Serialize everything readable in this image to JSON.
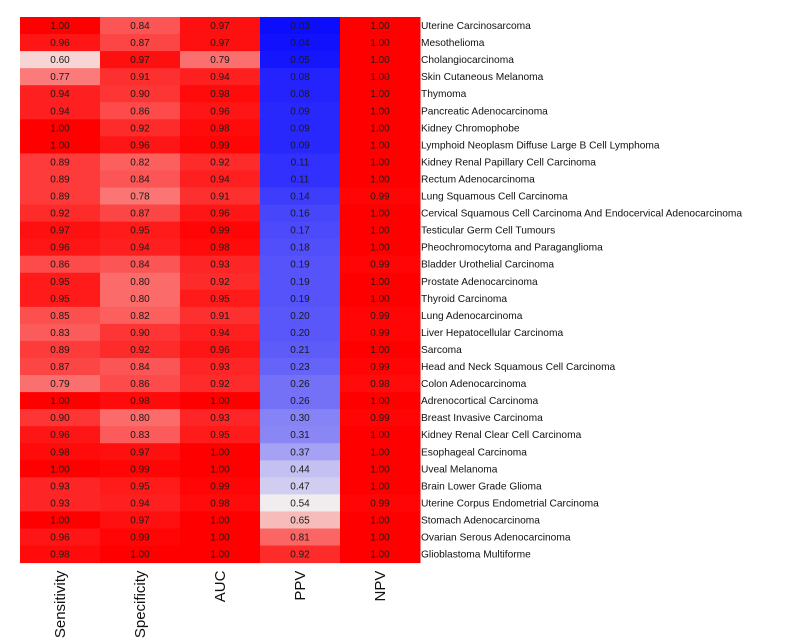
{
  "chart_data": {
    "type": "heatmap",
    "title": "",
    "columns": [
      "Sensitivity",
      "Specificity",
      "AUC",
      "PPV",
      "NPV"
    ],
    "rows": [
      {
        "name": "Uterine Carcinosarcoma",
        "values": [
          "1.00",
          "0.84",
          "0.97",
          "0.03",
          "1.00"
        ]
      },
      {
        "name": "Mesothelioma",
        "values": [
          "0.96",
          "0.87",
          "0.97",
          "0.04",
          "1.00"
        ]
      },
      {
        "name": "Cholangiocarcinoma",
        "values": [
          "0.60",
          "0.97",
          "0.79",
          "0.05",
          "1.00"
        ]
      },
      {
        "name": "Skin Cutaneous Melanoma",
        "values": [
          "0.77",
          "0.91",
          "0.94",
          "0.08",
          "1.00"
        ]
      },
      {
        "name": "Thymoma",
        "values": [
          "0.94",
          "0.90",
          "0.98",
          "0.08",
          "1.00"
        ]
      },
      {
        "name": "Pancreatic Adenocarcinoma",
        "values": [
          "0.94",
          "0.86",
          "0.96",
          "0.09",
          "1.00"
        ]
      },
      {
        "name": "Kidney Chromophobe",
        "values": [
          "1.00",
          "0.92",
          "0.98",
          "0.09",
          "1.00"
        ]
      },
      {
        "name": "Lymphoid Neoplasm Diffuse Large B Cell Lymphoma",
        "values": [
          "1.00",
          "0.96",
          "0.99",
          "0.09",
          "1.00"
        ]
      },
      {
        "name": "Kidney Renal Papillary Cell Carcinoma",
        "values": [
          "0.89",
          "0.82",
          "0.92",
          "0.11",
          "1.00"
        ]
      },
      {
        "name": "Rectum Adenocarcinoma",
        "values": [
          "0.89",
          "0.84",
          "0.94",
          "0.11",
          "1.00"
        ]
      },
      {
        "name": "Lung Squamous Cell Carcinoma",
        "values": [
          "0.89",
          "0.78",
          "0.91",
          "0.14",
          "0.99"
        ]
      },
      {
        "name": "Cervical Squamous Cell Carcinoma And Endocervical Adenocarcinoma",
        "values": [
          "0.92",
          "0.87",
          "0.96",
          "0.16",
          "1.00"
        ]
      },
      {
        "name": "Testicular Germ Cell Tumours",
        "values": [
          "0.97",
          "0.95",
          "0.99",
          "0.17",
          "1.00"
        ]
      },
      {
        "name": "Pheochromocytoma and Paraganglioma",
        "values": [
          "0.96",
          "0.94",
          "0.98",
          "0.18",
          "1.00"
        ]
      },
      {
        "name": "Bladder Urothelial Carcinoma",
        "values": [
          "0.86",
          "0.84",
          "0.93",
          "0.19",
          "0.99"
        ]
      },
      {
        "name": "Prostate Adenocarcinoma",
        "values": [
          "0.95",
          "0.80",
          "0.92",
          "0.19",
          "1.00"
        ]
      },
      {
        "name": "Thyroid Carcinoma",
        "values": [
          "0.95",
          "0.80",
          "0.95",
          "0.19",
          "1.00"
        ]
      },
      {
        "name": "Lung Adenocarcinoma",
        "values": [
          "0.85",
          "0.82",
          "0.91",
          "0.20",
          "0.99"
        ]
      },
      {
        "name": "Liver Hepatocellular Carcinoma",
        "values": [
          "0.83",
          "0.90",
          "0.94",
          "0.20",
          "0.99"
        ]
      },
      {
        "name": "Sarcoma",
        "values": [
          "0.89",
          "0.92",
          "0.96",
          "0.21",
          "1.00"
        ]
      },
      {
        "name": "Head and Neck Squamous Cell Carcinoma",
        "values": [
          "0.87",
          "0.84",
          "0.93",
          "0.23",
          "0.99"
        ]
      },
      {
        "name": "Colon Adenocarcinoma",
        "values": [
          "0.79",
          "0.86",
          "0.92",
          "0.26",
          "0.98"
        ]
      },
      {
        "name": "Adrenocortical Carcinoma",
        "values": [
          "1.00",
          "0.98",
          "1.00",
          "0.26",
          "1.00"
        ]
      },
      {
        "name": "Breast Invasive Carcinoma",
        "values": [
          "0.90",
          "0.80",
          "0.93",
          "0.30",
          "0.99"
        ]
      },
      {
        "name": "Kidney Renal Clear Cell Carcinoma",
        "values": [
          "0.96",
          "0.83",
          "0.95",
          "0.31",
          "1.00"
        ]
      },
      {
        "name": "Esophageal Carcinoma",
        "values": [
          "0.98",
          "0.97",
          "1.00",
          "0.37",
          "1.00"
        ]
      },
      {
        "name": "Uveal Melanoma",
        "values": [
          "1.00",
          "0.99",
          "1.00",
          "0.44",
          "1.00"
        ]
      },
      {
        "name": "Brain Lower Grade Glioma",
        "values": [
          "0.93",
          "0.95",
          "0.99",
          "0.47",
          "1.00"
        ]
      },
      {
        "name": "Uterine Corpus Endometrial Carcinoma",
        "values": [
          "0.93",
          "0.94",
          "0.98",
          "0.54",
          "0.99"
        ]
      },
      {
        "name": "Stomach Adenocarcinoma",
        "values": [
          "1.00",
          "0.97",
          "1.00",
          "0.65",
          "1.00"
        ]
      },
      {
        "name": "Ovarian Serous Adenocarcinoma",
        "values": [
          "0.96",
          "0.99",
          "1.00",
          "0.81",
          "1.00"
        ]
      },
      {
        "name": "Glioblastoma Multiforme",
        "values": [
          "0.98",
          "1.00",
          "1.00",
          "0.92",
          "1.00"
        ]
      }
    ],
    "color_scale": {
      "low": "#0000ff",
      "mid": "#f5f0ee",
      "high": "#ff0000",
      "domain": [
        0,
        0.55,
        1
      ]
    },
    "grid": false,
    "legend": "none"
  }
}
